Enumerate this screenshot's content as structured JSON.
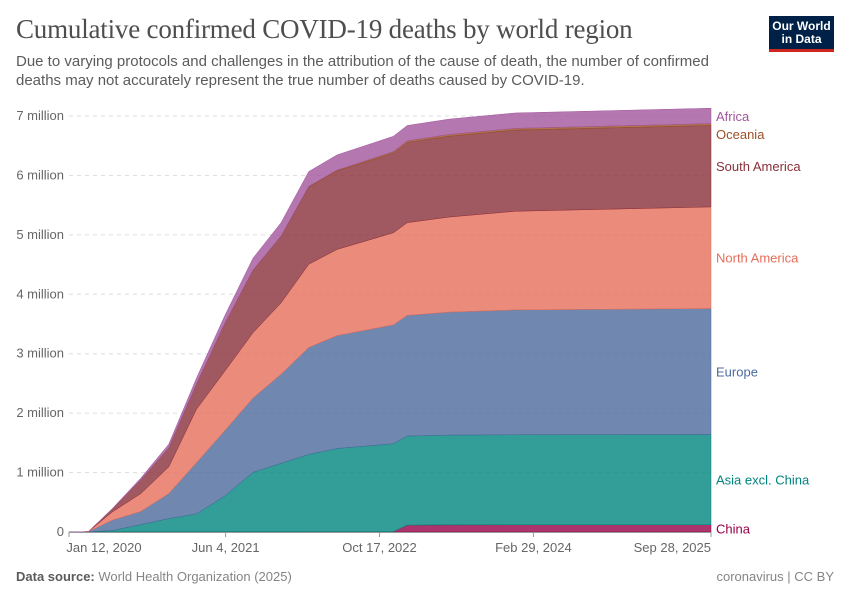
{
  "header": {
    "title": "Cumulative confirmed COVID-19 deaths by world region",
    "subtitle": "Due to varying protocols and challenges in the attribution of the cause of death, the number of confirmed deaths may not accurately represent the true number of deaths caused by COVID-19.",
    "logo_text": "Our World in Data"
  },
  "footer": {
    "source_label": "Data source:",
    "source": "World Health Organization (2025)",
    "license": "coronavirus | CC BY"
  },
  "chart_data": {
    "type": "area",
    "stacked": true,
    "ylim": [
      0,
      7000000
    ],
    "yticks": [
      0,
      1000000,
      2000000,
      3000000,
      4000000,
      5000000,
      6000000,
      7000000
    ],
    "ytick_labels": [
      "0",
      "1 million",
      "2 million",
      "3 million",
      "4 million",
      "5 million",
      "6 million",
      "7 million"
    ],
    "xticks": [
      "2020-01-12",
      "2021-06-04",
      "2022-10-17",
      "2024-02-29",
      "2025-09-28"
    ],
    "xtick_labels": [
      "Jan 12, 2020",
      "Jun 4, 2021",
      "Oct 17, 2022",
      "Feb 29, 2024",
      "Sep 28, 2025"
    ],
    "grid": "horizontal dashed",
    "legend": "right, inline labels",
    "x": [
      "2020-01-12",
      "2020-03-15",
      "2020-06-01",
      "2020-09-01",
      "2020-12-01",
      "2021-03-01",
      "2021-06-01",
      "2021-09-01",
      "2021-12-01",
      "2022-03-01",
      "2022-06-01",
      "2022-09-01",
      "2022-12-01",
      "2023-01-15",
      "2023-06-01",
      "2024-01-01",
      "2025-09-28"
    ],
    "series": [
      {
        "name": "China",
        "color": "#970046",
        "values": [
          0,
          3000,
          4600,
          4700,
          4700,
          4800,
          4900,
          5000,
          5000,
          5200,
          5200,
          5200,
          5500,
          115000,
          120000,
          122000,
          122000
        ]
      },
      {
        "name": "Asia excl. China",
        "color": "#00847e",
        "values": [
          0,
          300,
          20000,
          120000,
          220000,
          300000,
          600000,
          1000000,
          1150000,
          1300000,
          1400000,
          1440000,
          1480000,
          1500000,
          1510000,
          1515000,
          1518000
        ]
      },
      {
        "name": "Europe",
        "color": "#4c6a9c",
        "values": [
          0,
          2000,
          175000,
          220000,
          420000,
          860000,
          1100000,
          1250000,
          1500000,
          1800000,
          1900000,
          1950000,
          2000000,
          2030000,
          2070000,
          2100000,
          2120000
        ]
      },
      {
        "name": "North America",
        "color": "#e56e5a",
        "values": [
          0,
          500,
          140000,
          300000,
          450000,
          900000,
          1000000,
          1100000,
          1200000,
          1400000,
          1450000,
          1500000,
          1550000,
          1560000,
          1600000,
          1660000,
          1710000
        ]
      },
      {
        "name": "South America",
        "color": "#883039",
        "values": [
          0,
          0,
          50000,
          230000,
          320000,
          420000,
          800000,
          1050000,
          1120000,
          1300000,
          1320000,
          1330000,
          1340000,
          1350000,
          1360000,
          1365000,
          1370000
        ]
      },
      {
        "name": "Oceania",
        "color": "#9a5129",
        "values": [
          0,
          0,
          100,
          1000,
          1500,
          2000,
          3000,
          4000,
          5000,
          10000,
          15000,
          20000,
          25000,
          27000,
          29000,
          30000,
          32000
        ]
      },
      {
        "name": "Africa",
        "color": "#a2559c",
        "values": [
          0,
          0,
          5000,
          30000,
          60000,
          100000,
          130000,
          200000,
          225000,
          250000,
          255000,
          257000,
          258000,
          258000,
          259000,
          259000,
          259000
        ]
      }
    ]
  }
}
